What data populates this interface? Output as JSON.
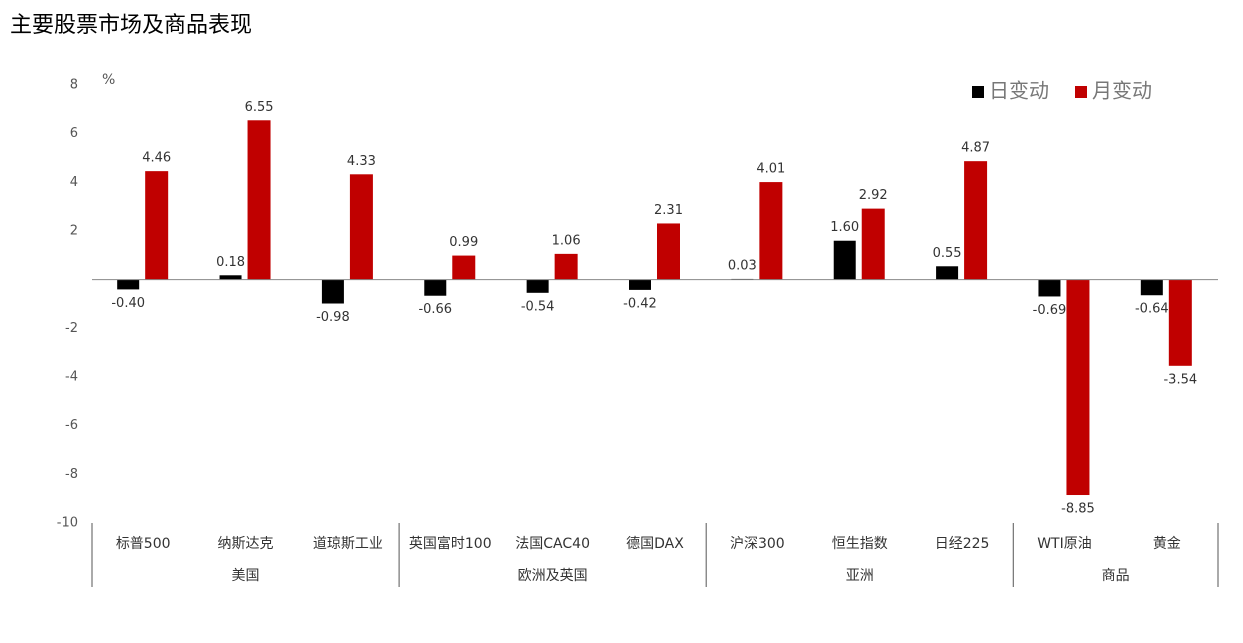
{
  "chart_data": {
    "type": "bar",
    "title": "主要股票市场及商品表现",
    "y_unit": "%",
    "groups": [
      {
        "name": "美国",
        "categories": [
          "标普500",
          "纳斯达克",
          "道琼斯工业"
        ]
      },
      {
        "name": "欧洲及英国",
        "categories": [
          "英国富时100",
          "法国CAC40",
          "德国DAX"
        ]
      },
      {
        "name": "亚洲",
        "categories": [
          "沪深300",
          "恒生指数",
          "日经225"
        ]
      },
      {
        "name": "商品",
        "categories": [
          "WTI原油",
          "黄金"
        ]
      }
    ],
    "series": [
      {
        "name": "日变动",
        "color": "#000000",
        "values": [
          -0.4,
          0.18,
          -0.98,
          -0.66,
          -0.54,
          -0.42,
          0.03,
          1.6,
          0.55,
          -0.69,
          -0.64
        ],
        "value_labels": [
          "-0.40",
          "0.18",
          "-0.98",
          "-0.66",
          "-0.54",
          "-0.42",
          "0.03",
          "1.60",
          "0.55",
          "-0.69",
          "-0.64"
        ]
      },
      {
        "name": "月变动",
        "color": "#c00000",
        "values": [
          4.46,
          6.55,
          4.33,
          0.99,
          1.06,
          2.31,
          4.01,
          2.92,
          4.87,
          -8.85,
          -3.54
        ],
        "value_labels": [
          "4.46",
          "6.55",
          "4.33",
          "0.99",
          "1.06",
          "2.31",
          "4.01",
          "2.92",
          "4.87",
          "-8.85",
          "-3.54"
        ]
      }
    ],
    "ylim": [
      -10,
      8
    ],
    "yticks": [
      -10,
      -8,
      -6,
      -4,
      -2,
      2,
      4,
      6,
      8
    ],
    "grid": false,
    "legend": "top-right"
  }
}
